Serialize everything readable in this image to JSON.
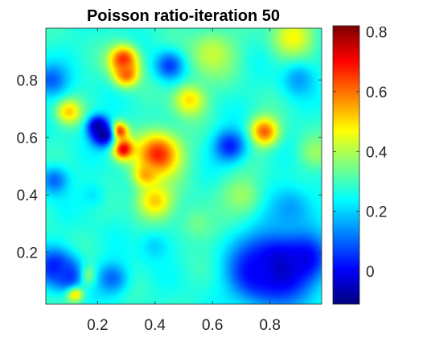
{
  "chart_data": {
    "type": "heatmap",
    "title": "Poisson ratio-iteration 50",
    "xlabel": "",
    "ylabel": "",
    "xlim": [
      0.02,
      0.98
    ],
    "ylim": [
      0.02,
      0.98
    ],
    "x_ticks": [
      0.2,
      0.4,
      0.6,
      0.8
    ],
    "x_tick_labels": [
      "0.2",
      "0.4",
      "0.6",
      "0.8"
    ],
    "y_ticks": [
      0.2,
      0.4,
      0.6,
      0.8
    ],
    "y_tick_labels": [
      "0.2",
      "0.4",
      "0.6",
      "0.8"
    ],
    "colormap": "jet",
    "colorbar": {
      "limits": [
        -0.11,
        0.82
      ],
      "ticks": [
        0,
        0.2,
        0.4,
        0.6,
        0.8
      ],
      "tick_labels": [
        "0",
        "0.2",
        "0.4",
        "0.6",
        "0.8"
      ]
    },
    "background_value": 0.27,
    "hotspots": [
      {
        "x": 0.27,
        "y": 0.62,
        "sigma": 0.022,
        "value": 0.82
      },
      {
        "x": 0.29,
        "y": 0.56,
        "sigma": 0.025,
        "value": 0.75
      },
      {
        "x": 0.22,
        "y": 0.61,
        "sigma": 0.03,
        "value": -0.1
      },
      {
        "x": 0.2,
        "y": 0.64,
        "sigma": 0.025,
        "value": -0.08
      },
      {
        "x": 0.41,
        "y": 0.54,
        "sigma": 0.055,
        "value": 0.68
      },
      {
        "x": 0.37,
        "y": 0.47,
        "sigma": 0.03,
        "value": 0.56
      },
      {
        "x": 0.4,
        "y": 0.38,
        "sigma": 0.045,
        "value": 0.52
      },
      {
        "x": 0.29,
        "y": 0.87,
        "sigma": 0.035,
        "value": 0.68
      },
      {
        "x": 0.3,
        "y": 0.82,
        "sigma": 0.03,
        "value": 0.62
      },
      {
        "x": 0.78,
        "y": 0.62,
        "sigma": 0.035,
        "value": 0.62
      },
      {
        "x": 0.1,
        "y": 0.69,
        "sigma": 0.03,
        "value": 0.52
      },
      {
        "x": 0.52,
        "y": 0.73,
        "sigma": 0.04,
        "value": 0.5
      },
      {
        "x": 0.12,
        "y": 0.06,
        "sigma": 0.02,
        "value": 0.65
      },
      {
        "x": 0.16,
        "y": 0.12,
        "sigma": 0.025,
        "value": 0.5
      },
      {
        "x": 0.6,
        "y": 0.89,
        "sigma": 0.06,
        "value": 0.42
      },
      {
        "x": 0.88,
        "y": 0.95,
        "sigma": 0.05,
        "value": 0.47
      },
      {
        "x": 0.83,
        "y": 0.15,
        "sigma": 0.09,
        "value": -0.08
      },
      {
        "x": 0.75,
        "y": 0.13,
        "sigma": 0.06,
        "value": 0.0
      },
      {
        "x": 0.92,
        "y": 0.18,
        "sigma": 0.05,
        "value": -0.02
      },
      {
        "x": 0.05,
        "y": 0.15,
        "sigma": 0.045,
        "value": 0.02
      },
      {
        "x": 0.1,
        "y": 0.12,
        "sigma": 0.04,
        "value": 0.05
      },
      {
        "x": 0.25,
        "y": 0.11,
        "sigma": 0.04,
        "value": 0.1
      },
      {
        "x": 0.45,
        "y": 0.85,
        "sigma": 0.035,
        "value": 0.06
      },
      {
        "x": 0.66,
        "y": 0.57,
        "sigma": 0.04,
        "value": 0.03
      },
      {
        "x": 0.04,
        "y": 0.8,
        "sigma": 0.04,
        "value": 0.09
      },
      {
        "x": 0.9,
        "y": 0.8,
        "sigma": 0.04,
        "value": 0.15
      },
      {
        "x": 0.05,
        "y": 0.45,
        "sigma": 0.035,
        "value": 0.1
      },
      {
        "x": 0.87,
        "y": 0.35,
        "sigma": 0.06,
        "value": 0.15
      },
      {
        "x": 0.7,
        "y": 0.4,
        "sigma": 0.05,
        "value": 0.38
      },
      {
        "x": 0.55,
        "y": 0.3,
        "sigma": 0.05,
        "value": 0.34
      },
      {
        "x": 0.96,
        "y": 0.55,
        "sigma": 0.04,
        "value": 0.38
      },
      {
        "x": 0.4,
        "y": 0.22,
        "sigma": 0.04,
        "value": 0.2
      },
      {
        "x": 0.18,
        "y": 0.4,
        "sigma": 0.035,
        "value": 0.22
      }
    ]
  }
}
